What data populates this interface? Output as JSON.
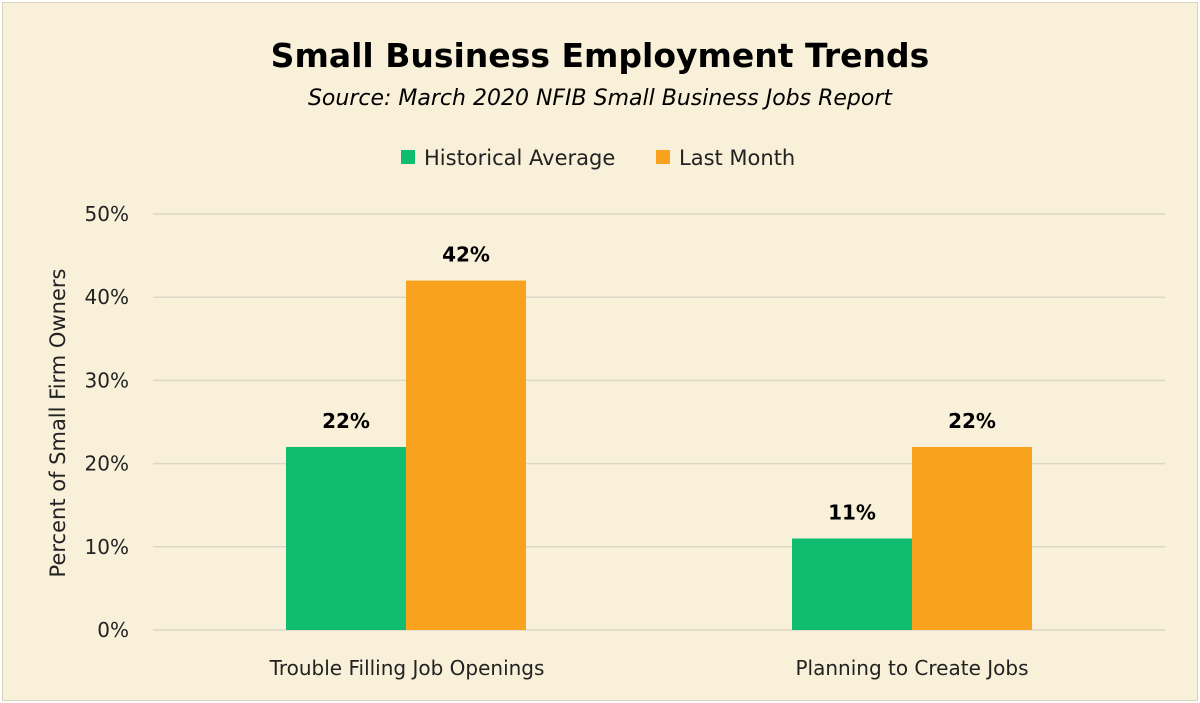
{
  "chart_data": {
    "type": "bar",
    "title": "Small Business Employment Trends",
    "subtitle": "Source: March 2020 NFIB Small Business Jobs Report",
    "ylabel": "Percent of  Small Firm Owners",
    "xlabel": "",
    "ylim": [
      0,
      50
    ],
    "yticks": [
      0,
      10,
      20,
      30,
      40,
      50
    ],
    "ytick_labels": [
      "0%",
      "10%",
      "20%",
      "30%",
      "40%",
      "50%"
    ],
    "categories": [
      "Trouble Filling Job Openings",
      "Planning to Create Jobs"
    ],
    "series": [
      {
        "name": "Historical Average",
        "values": [
          22,
          11
        ],
        "labels": [
          "22%",
          "11%"
        ],
        "color": "#10bd70"
      },
      {
        "name": "Last Month",
        "values": [
          42,
          22
        ],
        "labels": [
          "42%",
          "22%"
        ],
        "color": "#f8a21e"
      }
    ],
    "legend_position": "top-center",
    "grid": true
  }
}
